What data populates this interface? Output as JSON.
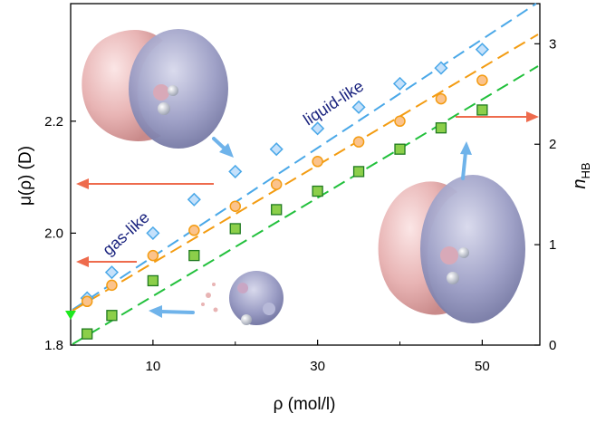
{
  "chart_data": {
    "type": "scatter",
    "xlabel": "ρ (mol/l)",
    "ylabel": "μ(ρ) (D)",
    "y2label_main": "n",
    "y2label_sub": "HB",
    "xlim": [
      0,
      57
    ],
    "ylim": [
      1.8,
      2.41
    ],
    "y2lim": [
      0,
      3.4
    ],
    "x_ticks": [
      10,
      30,
      50
    ],
    "x_minor_ticks": [
      20,
      40
    ],
    "y_ticks": [
      1.8,
      2.0,
      2.2
    ],
    "y_tick_labels": [
      "1.8",
      "2.0",
      "2.2"
    ],
    "y2_ticks": [
      0,
      1,
      2,
      3
    ],
    "y2_tick_labels": [
      "0",
      "1",
      "2",
      "3"
    ],
    "grid": false,
    "series": [
      {
        "marker": "diamond",
        "color": "#4aa8e8",
        "fill": "#c5e1fb",
        "x": [
          2,
          5,
          10,
          15,
          20,
          25,
          30,
          35,
          40,
          45,
          50
        ],
        "y": [
          1.884,
          1.93,
          2.0,
          2.06,
          2.11,
          2.15,
          2.187,
          2.225,
          2.267,
          2.295,
          2.328
        ]
      },
      {
        "marker": "circle",
        "color": "#f39c12",
        "fill": "#fbc38c",
        "x": [
          2,
          5,
          10,
          15,
          20,
          25,
          30,
          35,
          40,
          45,
          50
        ],
        "y": [
          1.878,
          1.907,
          1.96,
          2.005,
          2.048,
          2.087,
          2.128,
          2.163,
          2.2,
          2.24,
          2.273
        ]
      },
      {
        "marker": "square",
        "color": "#22c03c",
        "fill": "#8ccf4a",
        "x": [
          2,
          5,
          10,
          15,
          20,
          25,
          30,
          35,
          40,
          45,
          50
        ],
        "y": [
          1.82,
          1.853,
          1.915,
          1.96,
          2.008,
          2.042,
          2.075,
          2.11,
          2.15,
          2.188,
          2.22
        ]
      }
    ],
    "annotations": {
      "gas_like": "gas-like",
      "liquid_like": "liquid-like"
    }
  },
  "colors": {
    "arrow_red": "#ee6b4d",
    "arrow_blue": "#6fb3ea",
    "intercept_marker": "#1ee81e",
    "lobe_pink": "#e8b4b4",
    "lobe_blue": "#9a9cc4"
  }
}
